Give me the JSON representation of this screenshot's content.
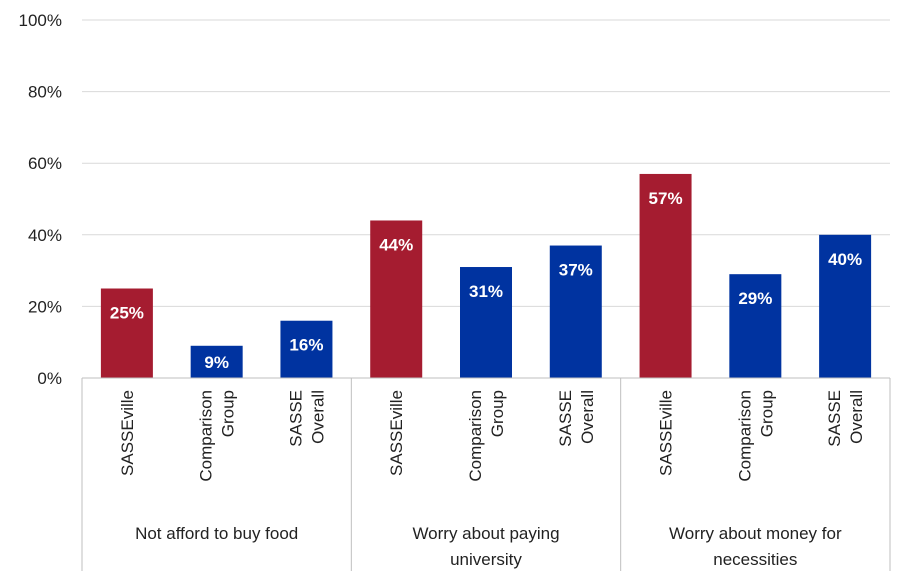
{
  "chart_data": {
    "type": "bar",
    "y_ticks": [
      "0%",
      "20%",
      "40%",
      "60%",
      "80%",
      "100%"
    ],
    "ylim": [
      0,
      100
    ],
    "grid": true,
    "groups": [
      {
        "label_lines": [
          "Not afford to buy food"
        ],
        "bars": [
          {
            "category_lines": [
              "SASSEville"
            ],
            "value": 25,
            "label": "25%",
            "series": "SASSEville"
          },
          {
            "category_lines": [
              "Comparison",
              "Group"
            ],
            "value": 9,
            "label": "9%",
            "series": "other"
          },
          {
            "category_lines": [
              "SASSE",
              "Overall"
            ],
            "value": 16,
            "label": "16%",
            "series": "other"
          }
        ]
      },
      {
        "label_lines": [
          "Worry about paying",
          "university"
        ],
        "bars": [
          {
            "category_lines": [
              "SASSEville"
            ],
            "value": 44,
            "label": "44%",
            "series": "SASSEville"
          },
          {
            "category_lines": [
              "Comparison",
              "Group"
            ],
            "value": 31,
            "label": "31%",
            "series": "other"
          },
          {
            "category_lines": [
              "SASSE",
              "Overall"
            ],
            "value": 37,
            "label": "37%",
            "series": "other"
          }
        ]
      },
      {
        "label_lines": [
          "Worry about money for",
          "necessities"
        ],
        "bars": [
          {
            "category_lines": [
              "SASSEville"
            ],
            "value": 57,
            "label": "57%",
            "series": "SASSEville"
          },
          {
            "category_lines": [
              "Comparison",
              "Group"
            ],
            "value": 29,
            "label": "29%",
            "series": "other"
          },
          {
            "category_lines": [
              "SASSE",
              "Overall"
            ],
            "value": 40,
            "label": "40%",
            "series": "other"
          }
        ]
      }
    ],
    "colors": {
      "SASSEville": "#a51c30",
      "other": "#0033a0",
      "grid": "#d9d9d9",
      "axis": "#bfbfbf"
    }
  }
}
